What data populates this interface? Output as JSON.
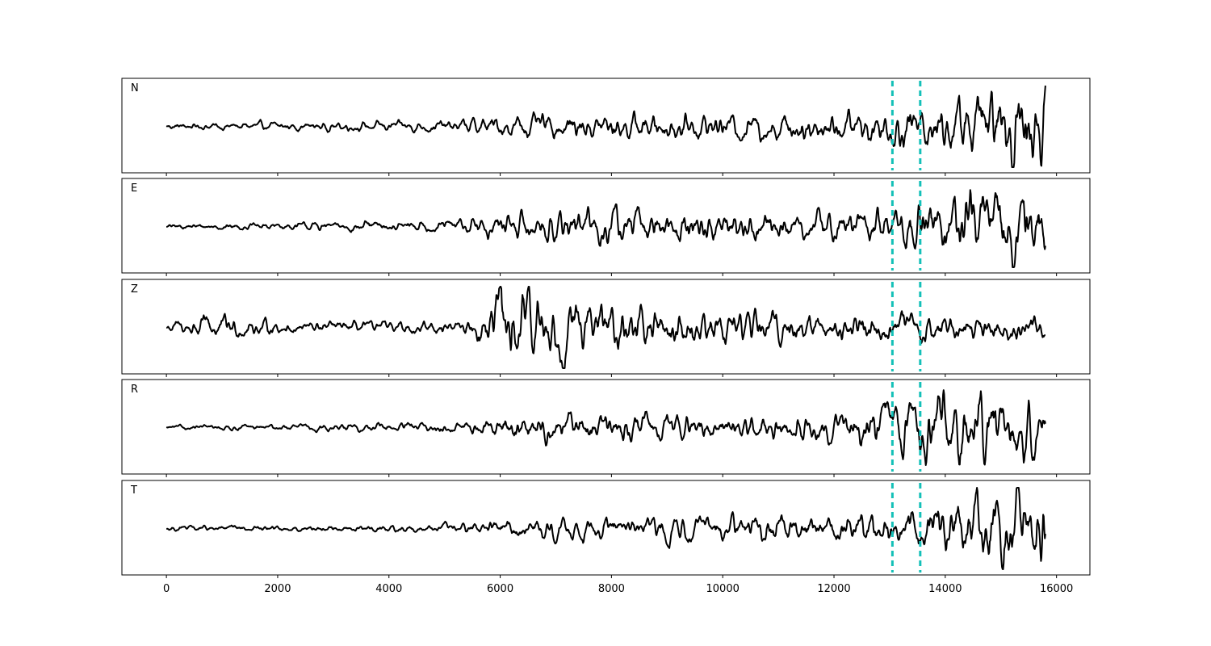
{
  "chart_data": {
    "type": "line",
    "subplots": [
      "N",
      "E",
      "Z",
      "R",
      "T"
    ],
    "x_range": [
      0,
      15800
    ],
    "xlim": [
      -800,
      16600
    ],
    "xticks": [
      0,
      2000,
      4000,
      6000,
      8000,
      10000,
      12000,
      14000,
      16000
    ],
    "xtick_labels": [
      "0",
      "2000",
      "4000",
      "6000",
      "8000",
      "10000",
      "12000",
      "14000",
      "16000"
    ],
    "yticks_visible": false,
    "vertical_markers": [
      13050,
      13550
    ],
    "marker_color": "#14c0b8",
    "trace_color": "#000000",
    "series": [
      {
        "name": "N",
        "envelope": [
          [
            0,
            0.07
          ],
          [
            1500,
            0.09
          ],
          [
            3000,
            0.1
          ],
          [
            5000,
            0.13
          ],
          [
            6000,
            0.25
          ],
          [
            8000,
            0.3
          ],
          [
            10000,
            0.3
          ],
          [
            12000,
            0.35
          ],
          [
            13000,
            0.45
          ],
          [
            14000,
            0.6
          ],
          [
            15000,
            0.9
          ],
          [
            15800,
            1.0
          ]
        ]
      },
      {
        "name": "E",
        "envelope": [
          [
            0,
            0.05
          ],
          [
            2000,
            0.08
          ],
          [
            5000,
            0.14
          ],
          [
            6000,
            0.3
          ],
          [
            7500,
            0.42
          ],
          [
            9500,
            0.4
          ],
          [
            11500,
            0.3
          ],
          [
            13000,
            0.45
          ],
          [
            14000,
            0.7
          ],
          [
            15800,
            0.9
          ]
        ]
      },
      {
        "name": "Z",
        "envelope": [
          [
            0,
            0.12
          ],
          [
            800,
            0.3
          ],
          [
            2000,
            0.15
          ],
          [
            4000,
            0.12
          ],
          [
            5500,
            0.2
          ],
          [
            6000,
            0.9
          ],
          [
            6600,
            0.8
          ],
          [
            7500,
            0.55
          ],
          [
            10000,
            0.4
          ],
          [
            12000,
            0.35
          ],
          [
            13500,
            0.3
          ],
          [
            15800,
            0.3
          ]
        ]
      },
      {
        "name": "R",
        "envelope": [
          [
            0,
            0.05
          ],
          [
            2000,
            0.07
          ],
          [
            4000,
            0.1
          ],
          [
            5500,
            0.15
          ],
          [
            6000,
            0.28
          ],
          [
            7500,
            0.32
          ],
          [
            10000,
            0.28
          ],
          [
            12000,
            0.3
          ],
          [
            13000,
            0.55
          ],
          [
            14000,
            0.85
          ],
          [
            15200,
            0.75
          ],
          [
            15800,
            0.6
          ]
        ]
      },
      {
        "name": "T",
        "envelope": [
          [
            0,
            0.06
          ],
          [
            3000,
            0.07
          ],
          [
            5000,
            0.1
          ],
          [
            6000,
            0.2
          ],
          [
            7000,
            0.25
          ],
          [
            9000,
            0.25
          ],
          [
            11000,
            0.3
          ],
          [
            13000,
            0.35
          ],
          [
            14000,
            0.6
          ],
          [
            15000,
            0.9
          ],
          [
            15800,
            1.0
          ]
        ]
      }
    ]
  }
}
